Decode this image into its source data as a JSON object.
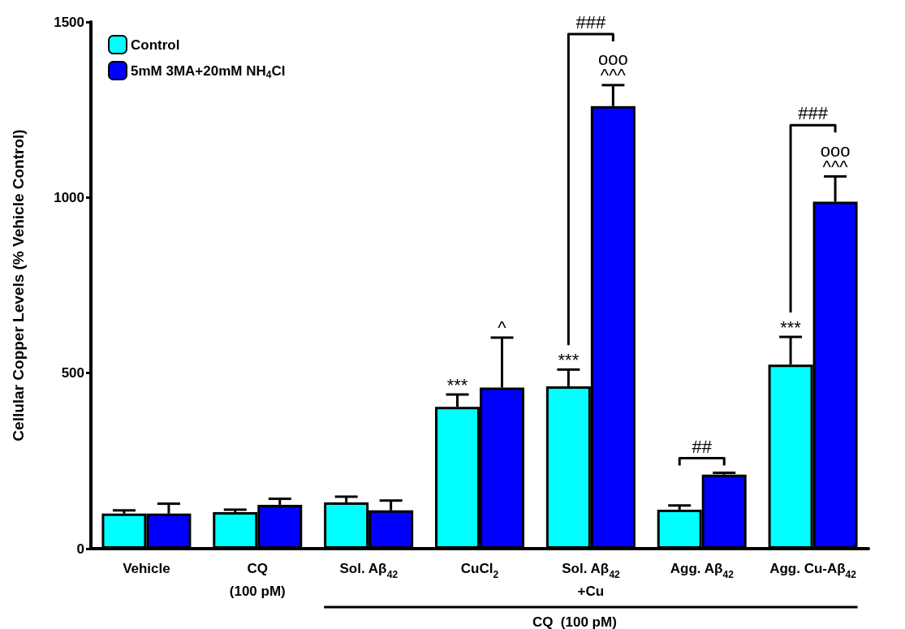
{
  "chart_data": {
    "type": "bar",
    "ylabel": "Cellular Copper Levels (% Vehicle Control)",
    "categories": [
      "Vehicle",
      "CQ\n(100 pM)",
      "Sol. Aβ$_{42}$",
      "CuCl$_{2}$",
      "Sol. Aβ$_{42}$\n+Cu",
      "Agg. Aβ$_{42}$",
      "Agg. Cu-Aβ$_{42}$"
    ],
    "series": [
      {
        "name": "Control",
        "color": "#00ffff",
        "values": [
          100,
          104,
          132,
          404,
          462,
          111,
          524
        ],
        "errors": [
          9,
          7,
          16,
          35,
          48,
          12,
          79
        ],
        "value_labels": [
          null,
          null,
          null,
          "***",
          "***",
          null,
          "***"
        ]
      },
      {
        "name": "5mM 3MA+20mM NH$_{4}$Cl",
        "color": "#0000ff",
        "values": [
          100,
          125,
          109,
          459,
          1260,
          211,
          988
        ],
        "errors": [
          28,
          17,
          28,
          142,
          60,
          5,
          72
        ],
        "value_labels": [
          null,
          null,
          null,
          "^",
          "ooo\n^^^",
          null,
          "ooo\n^^^"
        ]
      }
    ],
    "ylim": [
      0,
      1500
    ],
    "yticks": [
      0,
      500,
      1000,
      1500
    ],
    "grid": false,
    "legend": "top left",
    "annotations": [
      "###",
      "##",
      "###",
      "CQ  (100 pM)"
    ]
  }
}
